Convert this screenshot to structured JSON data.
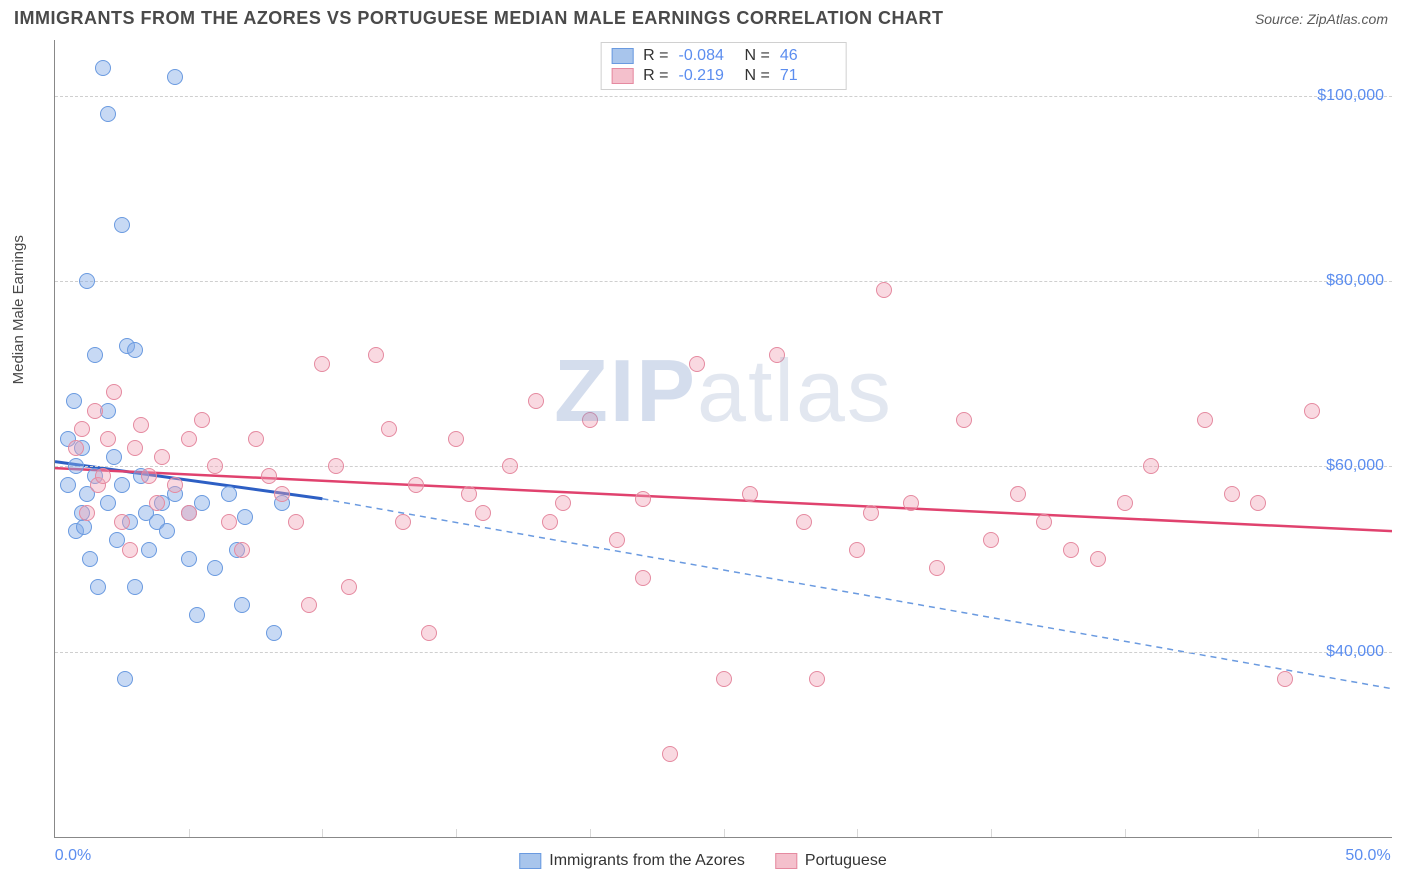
{
  "title": "IMMIGRANTS FROM THE AZORES VS PORTUGUESE MEDIAN MALE EARNINGS CORRELATION CHART",
  "source_label": "Source: ZipAtlas.com",
  "ylabel": "Median Male Earnings",
  "watermark_bold": "ZIP",
  "watermark_rest": "atlas",
  "chart": {
    "type": "scatter",
    "background_color": "#ffffff",
    "grid_color": "#cfcfcf",
    "axis_color": "#888888",
    "xlim": [
      0,
      50
    ],
    "ylim": [
      20000,
      106000
    ],
    "xtick_labels": [
      {
        "x": 0,
        "label": "0.0%"
      },
      {
        "x": 50,
        "label": "50.0%"
      }
    ],
    "xtick_minor": [
      5,
      10,
      15,
      20,
      25,
      30,
      35,
      40,
      45
    ],
    "ytick_labels": [
      {
        "y": 40000,
        "label": "$40,000"
      },
      {
        "y": 60000,
        "label": "$60,000"
      },
      {
        "y": 80000,
        "label": "$80,000"
      },
      {
        "y": 100000,
        "label": "$100,000"
      }
    ],
    "marker_radius": 8,
    "marker_border_width": 1,
    "series": [
      {
        "id": "azores",
        "label": "Immigrants from the Azores",
        "fill_color": "rgba(130,170,230,0.45)",
        "border_color": "#6a9ae0",
        "swatch_fill": "#a8c5ec",
        "swatch_border": "#6a9ae0",
        "R": "-0.084",
        "N": "46",
        "trend": {
          "solid": {
            "x1": 0,
            "y1": 60500,
            "x2": 10,
            "y2": 56500,
            "color": "#2d5fc4",
            "width": 3
          },
          "dashed": {
            "x1": 10,
            "y1": 56500,
            "x2": 50,
            "y2": 36000,
            "color": "#6a9ae0",
            "width": 1.5,
            "dash": "6,5"
          }
        },
        "points": [
          [
            0.5,
            58000
          ],
          [
            0.5,
            63000
          ],
          [
            0.7,
            67000
          ],
          [
            0.8,
            53000
          ],
          [
            0.8,
            60000
          ],
          [
            1.0,
            55000
          ],
          [
            1.0,
            62000
          ],
          [
            1.2,
            80000
          ],
          [
            1.2,
            57000
          ],
          [
            1.3,
            50000
          ],
          [
            1.5,
            72000
          ],
          [
            1.5,
            59000
          ],
          [
            1.6,
            47000
          ],
          [
            1.8,
            103000
          ],
          [
            2.0,
            98000
          ],
          [
            2.0,
            56000
          ],
          [
            2.0,
            66000
          ],
          [
            2.2,
            61000
          ],
          [
            2.3,
            52000
          ],
          [
            2.5,
            86000
          ],
          [
            2.5,
            58000
          ],
          [
            2.7,
            73000
          ],
          [
            2.8,
            54000
          ],
          [
            3.0,
            72500
          ],
          [
            3.0,
            47000
          ],
          [
            3.2,
            59000
          ],
          [
            3.4,
            55000
          ],
          [
            3.5,
            51000
          ],
          [
            3.8,
            54000
          ],
          [
            4.0,
            56000
          ],
          [
            4.2,
            53000
          ],
          [
            4.5,
            102000
          ],
          [
            4.5,
            57000
          ],
          [
            5.0,
            55000
          ],
          [
            5.0,
            50000
          ],
          [
            5.3,
            44000
          ],
          [
            5.5,
            56000
          ],
          [
            6.0,
            49000
          ],
          [
            6.5,
            57000
          ],
          [
            6.8,
            51000
          ],
          [
            7.0,
            45000
          ],
          [
            7.1,
            54500
          ],
          [
            8.2,
            42000
          ],
          [
            8.5,
            56000
          ],
          [
            1.1,
            53500
          ],
          [
            2.6,
            37000
          ]
        ]
      },
      {
        "id": "portuguese",
        "label": "Portuguese",
        "fill_color": "rgba(240,160,180,0.40)",
        "border_color": "#e58aa0",
        "swatch_fill": "#f4c0cc",
        "swatch_border": "#e58aa0",
        "R": "-0.219",
        "N": "71",
        "trend": {
          "solid": {
            "x1": 0,
            "y1": 59800,
            "x2": 50,
            "y2": 53000,
            "color": "#e0426e",
            "width": 2.5
          }
        },
        "points": [
          [
            0.8,
            62000
          ],
          [
            1.0,
            64000
          ],
          [
            1.2,
            55000
          ],
          [
            1.5,
            66000
          ],
          [
            1.6,
            58000
          ],
          [
            1.8,
            59000
          ],
          [
            2.0,
            63000
          ],
          [
            2.2,
            68000
          ],
          [
            2.5,
            54000
          ],
          [
            2.8,
            51000
          ],
          [
            3.0,
            62000
          ],
          [
            3.2,
            64500
          ],
          [
            3.5,
            59000
          ],
          [
            3.8,
            56000
          ],
          [
            4.0,
            61000
          ],
          [
            4.5,
            58000
          ],
          [
            5.0,
            63000
          ],
          [
            5.0,
            55000
          ],
          [
            5.5,
            65000
          ],
          [
            6.0,
            60000
          ],
          [
            6.5,
            54000
          ],
          [
            7.0,
            51000
          ],
          [
            7.5,
            63000
          ],
          [
            8.0,
            59000
          ],
          [
            8.5,
            57000
          ],
          [
            9.0,
            54000
          ],
          [
            9.5,
            45000
          ],
          [
            10.0,
            71000
          ],
          [
            10.5,
            60000
          ],
          [
            11.0,
            47000
          ],
          [
            12.0,
            72000
          ],
          [
            12.5,
            64000
          ],
          [
            13.0,
            54000
          ],
          [
            13.5,
            58000
          ],
          [
            14.0,
            42000
          ],
          [
            15.0,
            63000
          ],
          [
            15.5,
            57000
          ],
          [
            16.0,
            55000
          ],
          [
            17.0,
            60000
          ],
          [
            18.0,
            67000
          ],
          [
            18.5,
            54000
          ],
          [
            19.0,
            56000
          ],
          [
            20.0,
            65000
          ],
          [
            21.0,
            52000
          ],
          [
            22.0,
            48000
          ],
          [
            23.0,
            29000
          ],
          [
            24.0,
            71000
          ],
          [
            25.0,
            37000
          ],
          [
            26.0,
            57000
          ],
          [
            27.0,
            72000
          ],
          [
            28.0,
            54000
          ],
          [
            28.5,
            37000
          ],
          [
            30.0,
            51000
          ],
          [
            31.0,
            79000
          ],
          [
            32.0,
            56000
          ],
          [
            33.0,
            49000
          ],
          [
            34.0,
            65000
          ],
          [
            35.0,
            52000
          ],
          [
            36.0,
            57000
          ],
          [
            37.0,
            54000
          ],
          [
            38.0,
            51000
          ],
          [
            39.0,
            50000
          ],
          [
            40.0,
            56000
          ],
          [
            41.0,
            60000
          ],
          [
            43.0,
            65000
          ],
          [
            44.0,
            57000
          ],
          [
            45.0,
            56000
          ],
          [
            46.0,
            37000
          ],
          [
            47.0,
            66000
          ],
          [
            22.0,
            56500
          ],
          [
            30.5,
            55000
          ]
        ]
      }
    ]
  }
}
